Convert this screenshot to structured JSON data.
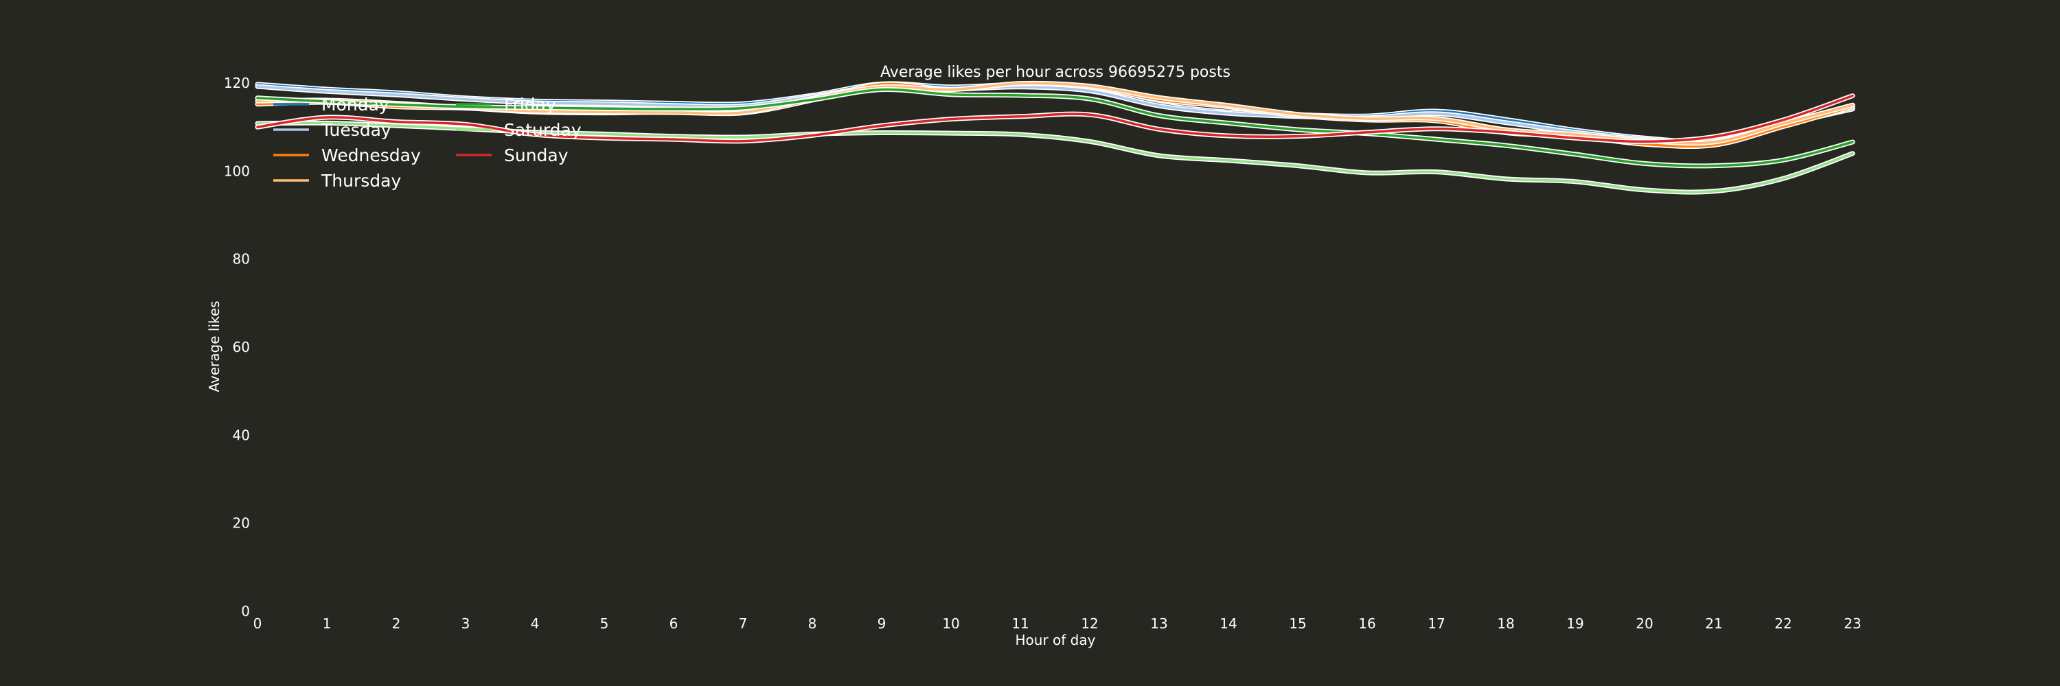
{
  "chart_data": {
    "type": "line",
    "title": "Average likes per hour across 96695275 posts",
    "xlabel": "Hour of day",
    "ylabel": "Average likes",
    "x": [
      0,
      1,
      2,
      3,
      4,
      5,
      6,
      7,
      8,
      9,
      10,
      11,
      12,
      13,
      14,
      15,
      16,
      17,
      18,
      19,
      20,
      21,
      22,
      23
    ],
    "xlim": [
      0,
      23
    ],
    "ylim": [
      0,
      130
    ],
    "yticks": [
      0,
      20,
      40,
      60,
      80,
      100,
      120
    ],
    "grid": false,
    "legend_position": "top-left",
    "series": [
      {
        "name": "Monday",
        "color": "#1f77b4",
        "values": [
          119.7,
          118.6,
          117.8,
          116.6,
          115.9,
          115.7,
          115.4,
          115.3,
          117.2,
          119.8,
          119.1,
          119.6,
          118.6,
          115.2,
          113.4,
          112.8,
          112.5,
          113.6,
          111.7,
          109.3,
          107.5,
          106.9,
          111.0,
          114.6
        ]
      },
      {
        "name": "Tuesday",
        "color": "#aec7e8",
        "values": [
          119.2,
          118.1,
          117.3,
          116.3,
          115.5,
          115.3,
          114.9,
          114.8,
          116.9,
          119.3,
          118.6,
          119.1,
          118.2,
          114.8,
          113.1,
          112.4,
          112.1,
          113.0,
          111.0,
          108.8,
          107.2,
          106.5,
          110.5,
          114.1
        ]
      },
      {
        "name": "Wednesday",
        "color": "#ff7f0e",
        "values": [
          115.2,
          115.6,
          114.6,
          114.3,
          113.4,
          113.2,
          113.4,
          113.2,
          116.1,
          119.7,
          118.6,
          119.8,
          119.1,
          116.2,
          114.6,
          112.6,
          111.6,
          111.4,
          108.7,
          107.9,
          106.1,
          105.9,
          110.1,
          114.6
        ]
      },
      {
        "name": "Thursday",
        "color": "#ffbb78",
        "values": [
          115.9,
          116.1,
          115.4,
          114.4,
          113.6,
          113.4,
          113.3,
          113.3,
          116.5,
          119.1,
          118.5,
          119.9,
          119.3,
          116.7,
          114.9,
          112.9,
          111.9,
          111.9,
          109.4,
          108.3,
          106.9,
          106.6,
          110.8,
          115.0
        ]
      },
      {
        "name": "Friday",
        "color": "#2ca02c",
        "values": [
          116.6,
          115.8,
          115.1,
          114.6,
          114.4,
          114.2,
          114.1,
          114.3,
          116.2,
          118.5,
          117.4,
          117.2,
          116.4,
          112.6,
          110.9,
          109.4,
          108.5,
          107.2,
          105.8,
          103.8,
          101.7,
          101.2,
          102.5,
          106.6
        ]
      },
      {
        "name": "Saturday",
        "color": "#98df8a",
        "values": [
          110.8,
          110.9,
          110.3,
          109.6,
          108.8,
          108.4,
          107.9,
          107.7,
          108.4,
          108.7,
          108.6,
          108.3,
          106.7,
          103.5,
          102.4,
          101.2,
          99.6,
          99.8,
          98.2,
          97.6,
          95.7,
          95.4,
          98.3,
          104.0
        ]
      },
      {
        "name": "Sunday",
        "color": "#d62728",
        "values": [
          110.0,
          112.2,
          111.2,
          110.6,
          108.3,
          107.5,
          107.2,
          106.8,
          108.1,
          110.3,
          111.8,
          112.4,
          112.8,
          109.5,
          108.0,
          107.9,
          108.8,
          109.6,
          108.8,
          107.5,
          106.7,
          107.8,
          111.6,
          117.1
        ]
      }
    ]
  }
}
